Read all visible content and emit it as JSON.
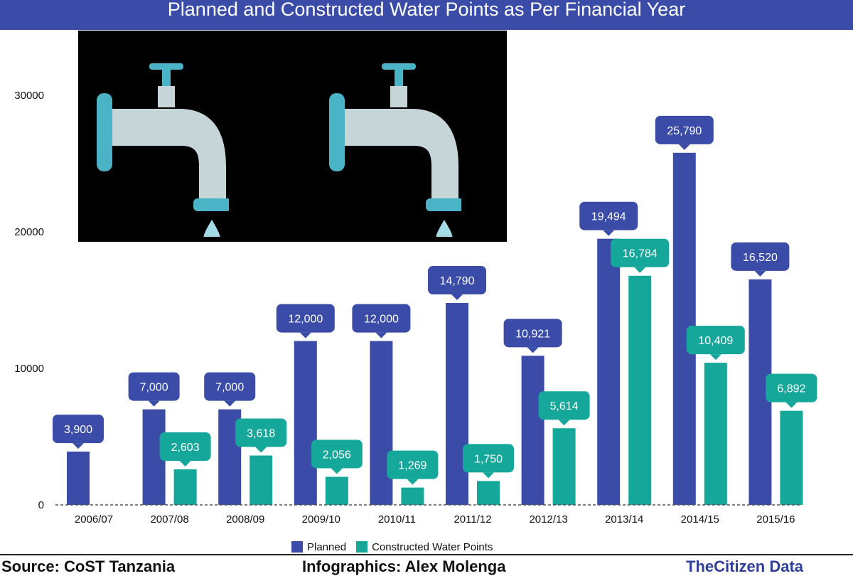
{
  "header": {
    "title": "Planned and Constructed Water Points as Per Financial Year"
  },
  "colors": {
    "planned": "#3a4ca8",
    "constructed": "#15a89a",
    "title_bg": "#3a4ca8"
  },
  "illustration": {
    "icons": [
      "faucet-icon",
      "water-drop-icon"
    ]
  },
  "footer": {
    "source": "Source: CoST Tanzania",
    "infographics": "Infographics: Alex Molenga",
    "brand": "TheCitizen Data"
  },
  "chart_data": {
    "type": "bar",
    "title": "Planned and Constructed Water Points as Per Financial Year",
    "xlabel": "",
    "ylabel": "",
    "ylim": [
      0,
      30000
    ],
    "yticks": [
      0,
      10000,
      20000,
      30000
    ],
    "ytick_labels": [
      "0",
      "10000",
      "20000",
      "30000"
    ],
    "grid": false,
    "legend_position": "bottom",
    "categories": [
      "2006/07",
      "2007/08",
      "2008/09",
      "2009/10",
      "2010/11",
      "2011/12",
      "2012/13",
      "2013/14",
      "2014/15",
      "2015/16"
    ],
    "series": [
      {
        "name": "Planned",
        "values": [
          3900,
          7000,
          7000,
          12000,
          12000,
          14790,
          10921,
          19494,
          25790,
          16520
        ],
        "labels": [
          "3,900",
          "7,000",
          "7,000",
          "12,000",
          "12,000",
          "14,790",
          "10,921",
          "19,494",
          "25,790",
          "16,520"
        ]
      },
      {
        "name": "Constructed Water Points",
        "values": [
          null,
          2603,
          3618,
          2056,
          1269,
          1750,
          5614,
          16784,
          10409,
          6892
        ],
        "labels": [
          null,
          "2,603",
          "3,618",
          "2,056",
          "1,269",
          "1,750",
          "5,614",
          "16,784",
          "10,409",
          "6,892"
        ]
      }
    ]
  }
}
